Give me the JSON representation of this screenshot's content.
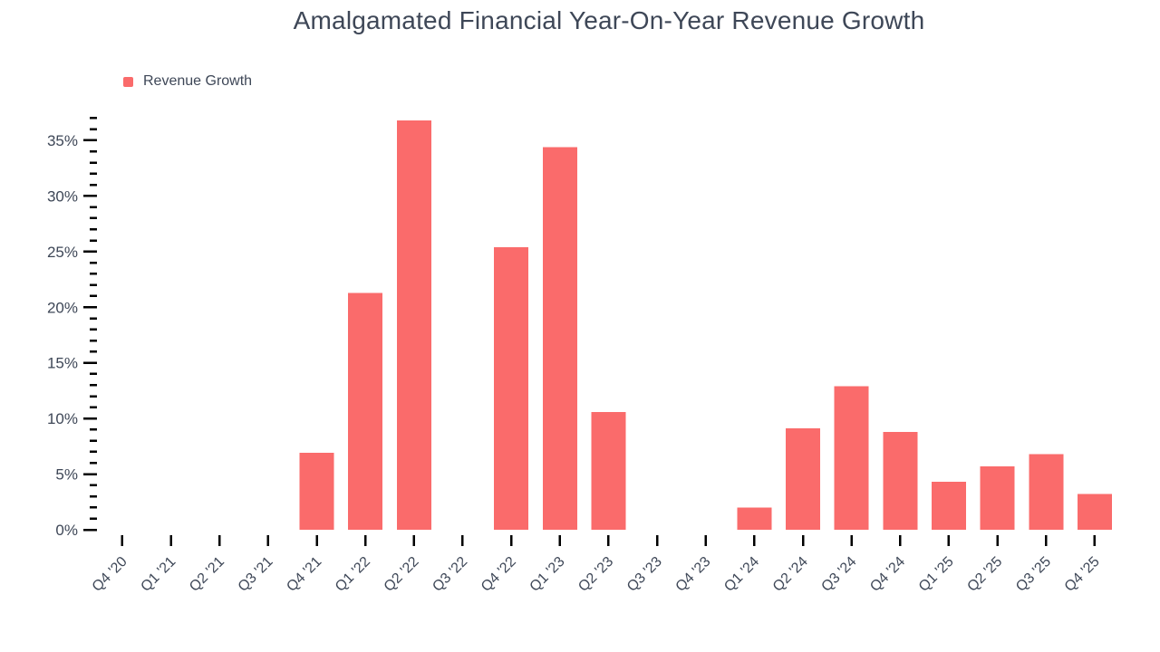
{
  "page": {
    "background": "#ffffff"
  },
  "chart_data": {
    "type": "bar",
    "title": "Amalgamated Financial Year-On-Year Revenue Growth",
    "legend": {
      "label": "Revenue Growth",
      "position": "top-left"
    },
    "categories": [
      "Q4 '20",
      "Q1 '21",
      "Q2 '21",
      "Q3 '21",
      "Q4 '21",
      "Q1 '22",
      "Q2 '22",
      "Q3 '22",
      "Q4 '22",
      "Q1 '23",
      "Q2 '23",
      "Q3 '23",
      "Q4 '23",
      "Q1 '24",
      "Q2 '24",
      "Q3 '24",
      "Q4 '24",
      "Q1 '25",
      "Q2 '25",
      "Q3 '25",
      "Q4 '25"
    ],
    "series": [
      {
        "name": "Revenue Growth",
        "color": "#FA6B6B",
        "values": [
          null,
          null,
          null,
          null,
          6.9,
          21.3,
          36.8,
          null,
          25.4,
          34.4,
          10.6,
          null,
          null,
          2.0,
          9.1,
          12.9,
          8.8,
          4.3,
          5.7,
          6.8,
          3.2
        ]
      }
    ],
    "xlabel": "",
    "ylabel": "",
    "y_axis": {
      "unit": "%",
      "tick_labels": [
        "0%",
        "5%",
        "10%",
        "15%",
        "20%",
        "25%",
        "30%",
        "35%"
      ],
      "major_step": 5,
      "minor_step": 1,
      "ylim": [
        0,
        37
      ],
      "grid": false
    },
    "x_axis": {
      "label_rotation_deg": -45
    },
    "colors": {
      "bar": "#FA6B6B",
      "text": "#3e4757",
      "tick": "#000000"
    }
  }
}
